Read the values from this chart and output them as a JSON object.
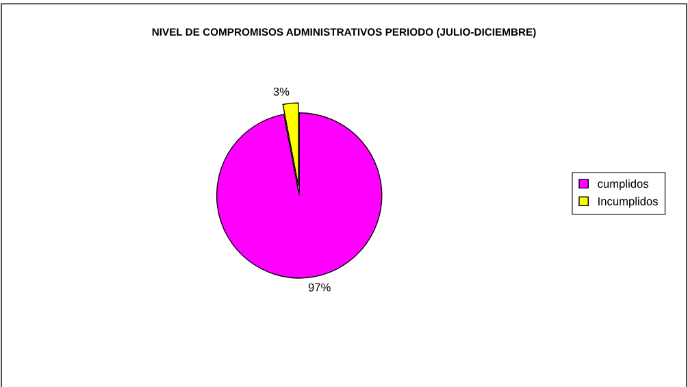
{
  "chart_data": {
    "type": "pie",
    "title": "NIVEL DE COMPROMISOS ADMINISTRATIVOS PERIODO (JULIO-DICIEMBRE)",
    "categories": [
      "cumplidos",
      "Incumplidos"
    ],
    "values": [
      97,
      3
    ],
    "colors": [
      "#ff00ff",
      "#ffff00"
    ],
    "value_labels": [
      "97%",
      "3%"
    ],
    "legend": "right"
  }
}
